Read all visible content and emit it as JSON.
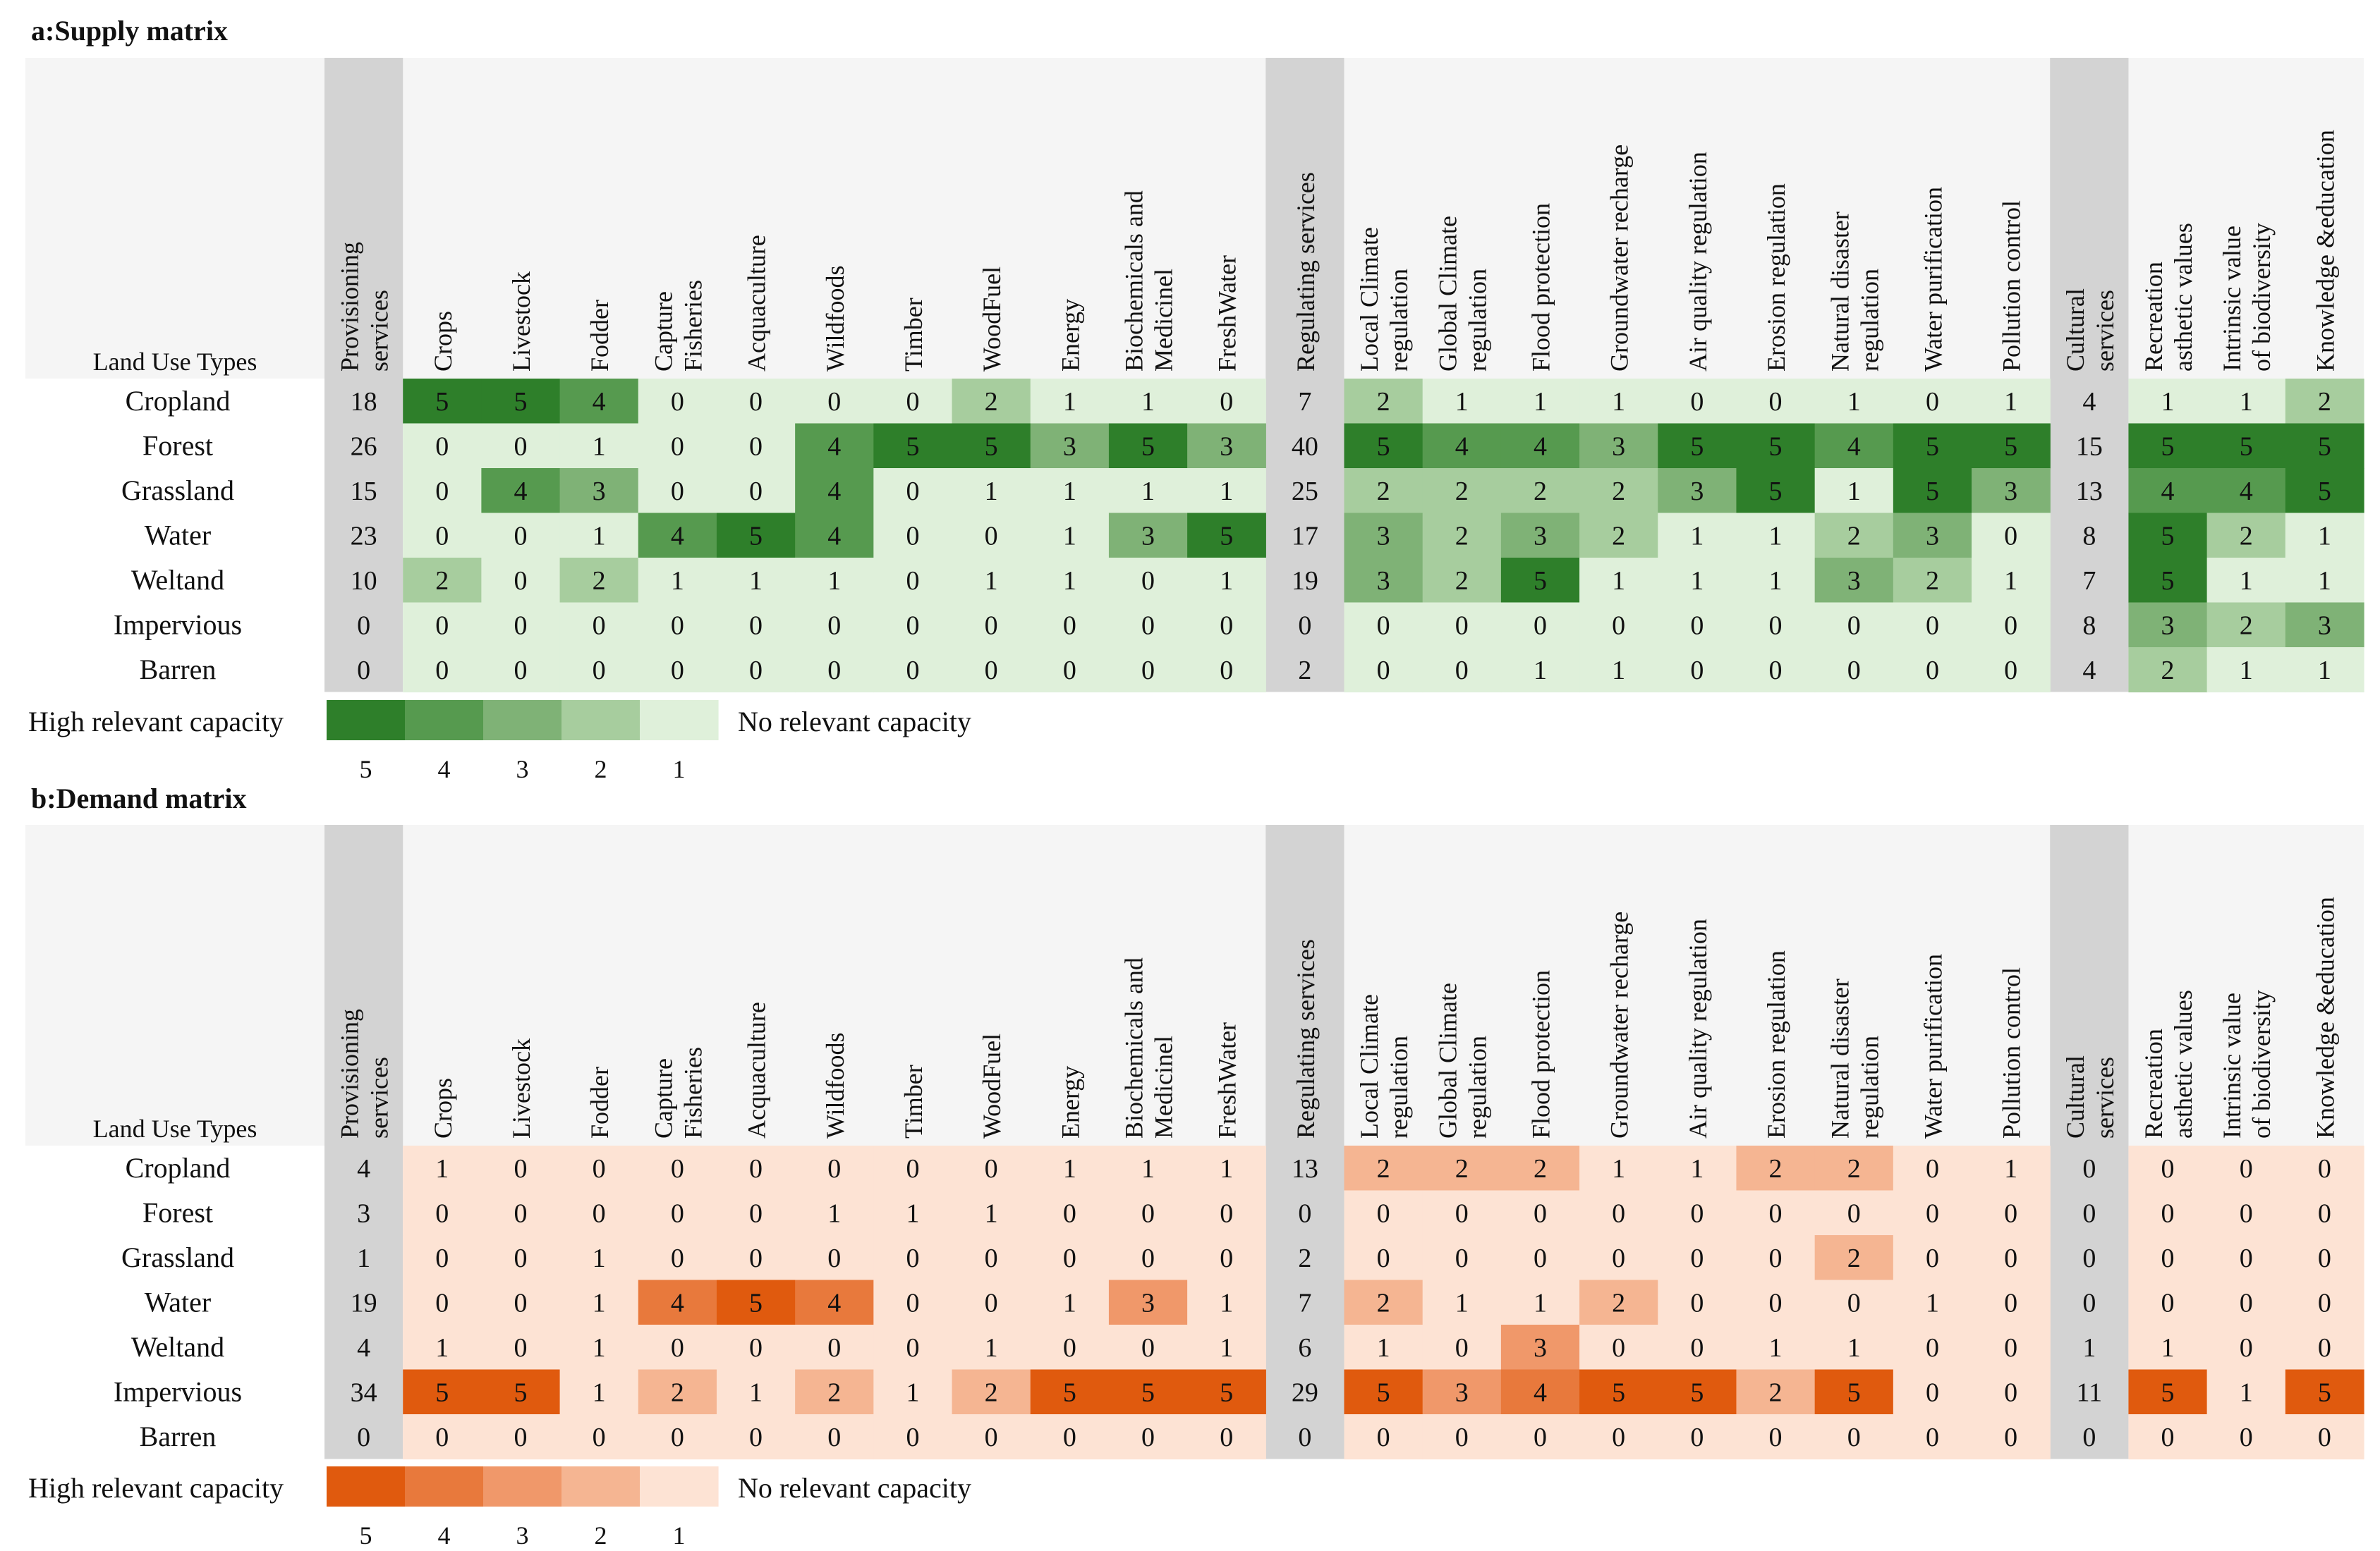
{
  "chart_data": [
    {
      "type": "heatmap",
      "title": "a:Supply matrix",
      "corner_label": "Land Use Types",
      "palette": "green",
      "rows": [
        "Cropland",
        "Forest",
        "Grassland",
        "Water",
        "Weltand",
        "Impervious",
        "Barren"
      ],
      "columns": [
        {
          "label": [
            "Provisioning",
            "services"
          ],
          "kind": "total"
        },
        {
          "label": [
            "Crops"
          ],
          "kind": "value"
        },
        {
          "label": [
            "Livestock"
          ],
          "kind": "value"
        },
        {
          "label": [
            "Fodder"
          ],
          "kind": "value"
        },
        {
          "label": [
            "Capture",
            "Fisheries"
          ],
          "kind": "value"
        },
        {
          "label": [
            "Acquaculture"
          ],
          "kind": "value"
        },
        {
          "label": [
            "Wildfoods"
          ],
          "kind": "value"
        },
        {
          "label": [
            "Timber"
          ],
          "kind": "value"
        },
        {
          "label": [
            "WoodFuel"
          ],
          "kind": "value"
        },
        {
          "label": [
            "Energy"
          ],
          "kind": "value"
        },
        {
          "label": [
            "Biochemicals and",
            "Medicinel"
          ],
          "kind": "value"
        },
        {
          "label": [
            "FreshWater"
          ],
          "kind": "value"
        },
        {
          "label": [
            "Regulating services"
          ],
          "kind": "total"
        },
        {
          "label": [
            "Local Climate",
            "regulation"
          ],
          "kind": "value"
        },
        {
          "label": [
            "Global Climate",
            "regulation"
          ],
          "kind": "value"
        },
        {
          "label": [
            "Flood protection"
          ],
          "kind": "value"
        },
        {
          "label": [
            "Groundwater recharge"
          ],
          "kind": "value"
        },
        {
          "label": [
            "Air quality regulation"
          ],
          "kind": "value"
        },
        {
          "label": [
            "Erosion regulation"
          ],
          "kind": "value"
        },
        {
          "label": [
            "Natural disaster",
            "regulation"
          ],
          "kind": "value"
        },
        {
          "label": [
            "Water purification"
          ],
          "kind": "value"
        },
        {
          "label": [
            "Pollution control"
          ],
          "kind": "value"
        },
        {
          "label": [
            "Cultural",
            "services"
          ],
          "kind": "total"
        },
        {
          "label": [
            "Recreation",
            "asthetic values"
          ],
          "kind": "value"
        },
        {
          "label": [
            "Intrinsic value",
            "of biodiversity"
          ],
          "kind": "value"
        },
        {
          "label": [
            "Knowledge &education"
          ],
          "kind": "value"
        }
      ],
      "values": [
        [
          18,
          5,
          5,
          4,
          0,
          0,
          0,
          0,
          2,
          1,
          1,
          0,
          7,
          2,
          1,
          1,
          1,
          0,
          0,
          1,
          0,
          1,
          4,
          1,
          1,
          2
        ],
        [
          26,
          0,
          0,
          1,
          0,
          0,
          4,
          5,
          5,
          3,
          5,
          3,
          40,
          5,
          4,
          4,
          3,
          5,
          5,
          4,
          5,
          5,
          15,
          5,
          5,
          5
        ],
        [
          15,
          0,
          4,
          3,
          0,
          0,
          4,
          0,
          1,
          1,
          1,
          1,
          25,
          2,
          2,
          2,
          2,
          3,
          5,
          1,
          5,
          3,
          13,
          4,
          4,
          5
        ],
        [
          23,
          0,
          0,
          1,
          4,
          5,
          4,
          0,
          0,
          1,
          3,
          5,
          17,
          3,
          2,
          3,
          2,
          1,
          1,
          2,
          3,
          0,
          8,
          5,
          2,
          1
        ],
        [
          10,
          2,
          0,
          2,
          1,
          1,
          1,
          0,
          1,
          1,
          0,
          1,
          19,
          3,
          2,
          5,
          1,
          1,
          1,
          3,
          2,
          1,
          7,
          5,
          1,
          1
        ],
        [
          0,
          0,
          0,
          0,
          0,
          0,
          0,
          0,
          0,
          0,
          0,
          0,
          0,
          0,
          0,
          0,
          0,
          0,
          0,
          0,
          0,
          0,
          8,
          3,
          2,
          3
        ],
        [
          0,
          0,
          0,
          0,
          0,
          0,
          0,
          0,
          0,
          0,
          0,
          0,
          2,
          0,
          0,
          1,
          1,
          0,
          0,
          0,
          0,
          0,
          4,
          2,
          1,
          1
        ]
      ],
      "legend": {
        "high_label": "High relevant capacity",
        "low_label": "No relevant capacity",
        "levels": [
          "5",
          "4",
          "3",
          "2",
          "1"
        ],
        "colors": [
          "#2e7f2a",
          "#569a4f",
          "#7fb276",
          "#a7cd9e",
          "#dff0da"
        ]
      },
      "total_column_color": "#d3d3d3",
      "header_background": "#f5f5f5"
    },
    {
      "type": "heatmap",
      "title": "b:Demand matrix",
      "corner_label": "Land Use Types",
      "palette": "orange",
      "rows": [
        "Cropland",
        "Forest",
        "Grassland",
        "Water",
        "Weltand",
        "Impervious",
        "Barren"
      ],
      "columns": [
        {
          "label": [
            "Provisioning",
            "services"
          ],
          "kind": "total"
        },
        {
          "label": [
            "Crops"
          ],
          "kind": "value"
        },
        {
          "label": [
            "Livestock"
          ],
          "kind": "value"
        },
        {
          "label": [
            "Fodder"
          ],
          "kind": "value"
        },
        {
          "label": [
            "Capture",
            "Fisheries"
          ],
          "kind": "value"
        },
        {
          "label": [
            "Acquaculture"
          ],
          "kind": "value"
        },
        {
          "label": [
            "Wildfoods"
          ],
          "kind": "value"
        },
        {
          "label": [
            "Timber"
          ],
          "kind": "value"
        },
        {
          "label": [
            "WoodFuel"
          ],
          "kind": "value"
        },
        {
          "label": [
            "Energy"
          ],
          "kind": "value"
        },
        {
          "label": [
            "Biochemicals and",
            "Medicinel"
          ],
          "kind": "value"
        },
        {
          "label": [
            "FreshWater"
          ],
          "kind": "value"
        },
        {
          "label": [
            "Regulating services"
          ],
          "kind": "total"
        },
        {
          "label": [
            "Local Climate",
            "regulation"
          ],
          "kind": "value"
        },
        {
          "label": [
            "Global Climate",
            "regulation"
          ],
          "kind": "value"
        },
        {
          "label": [
            "Flood protection"
          ],
          "kind": "value"
        },
        {
          "label": [
            "Groundwater recharge"
          ],
          "kind": "value"
        },
        {
          "label": [
            "Air quality regulation"
          ],
          "kind": "value"
        },
        {
          "label": [
            "Erosion regulation"
          ],
          "kind": "value"
        },
        {
          "label": [
            "Natural disaster",
            "regulation"
          ],
          "kind": "value"
        },
        {
          "label": [
            "Water purification"
          ],
          "kind": "value"
        },
        {
          "label": [
            "Pollution control"
          ],
          "kind": "value"
        },
        {
          "label": [
            "Cultural",
            "services"
          ],
          "kind": "total"
        },
        {
          "label": [
            "Recreation",
            "asthetic values"
          ],
          "kind": "value"
        },
        {
          "label": [
            "Intrinsic value",
            "of biodiversity"
          ],
          "kind": "value"
        },
        {
          "label": [
            "Knowledge &education"
          ],
          "kind": "value"
        }
      ],
      "values": [
        [
          4,
          1,
          0,
          0,
          0,
          0,
          0,
          0,
          0,
          1,
          1,
          1,
          13,
          2,
          2,
          2,
          1,
          1,
          2,
          2,
          0,
          1,
          0,
          0,
          0,
          0
        ],
        [
          3,
          0,
          0,
          0,
          0,
          0,
          1,
          1,
          1,
          0,
          0,
          0,
          0,
          0,
          0,
          0,
          0,
          0,
          0,
          0,
          0,
          0,
          0,
          0,
          0,
          0
        ],
        [
          1,
          0,
          0,
          1,
          0,
          0,
          0,
          0,
          0,
          0,
          0,
          0,
          2,
          0,
          0,
          0,
          0,
          0,
          0,
          2,
          0,
          0,
          0,
          0,
          0,
          0
        ],
        [
          19,
          0,
          0,
          1,
          4,
          5,
          4,
          0,
          0,
          1,
          3,
          1,
          7,
          2,
          1,
          1,
          2,
          0,
          0,
          0,
          1,
          0,
          0,
          0,
          0,
          0
        ],
        [
          4,
          1,
          0,
          1,
          0,
          0,
          0,
          0,
          1,
          0,
          0,
          1,
          6,
          1,
          0,
          3,
          0,
          0,
          1,
          1,
          0,
          0,
          1,
          1,
          0,
          0
        ],
        [
          34,
          5,
          5,
          1,
          2,
          1,
          2,
          1,
          2,
          5,
          5,
          5,
          29,
          5,
          3,
          4,
          5,
          5,
          2,
          5,
          0,
          0,
          11,
          5,
          1,
          5
        ],
        [
          0,
          0,
          0,
          0,
          0,
          0,
          0,
          0,
          0,
          0,
          0,
          0,
          0,
          0,
          0,
          0,
          0,
          0,
          0,
          0,
          0,
          0,
          0,
          0,
          0,
          0
        ]
      ],
      "legend": {
        "high_label": "High relevant capacity",
        "low_label": "No relevant capacity",
        "levels": [
          "5",
          "4",
          "3",
          "2",
          "1"
        ],
        "colors": [
          "#e05a0e",
          "#e8793c",
          "#f0986a",
          "#f5b592",
          "#fde3d4"
        ]
      },
      "total_column_color": "#d3d3d3",
      "header_background": "#f5f5f5"
    }
  ]
}
